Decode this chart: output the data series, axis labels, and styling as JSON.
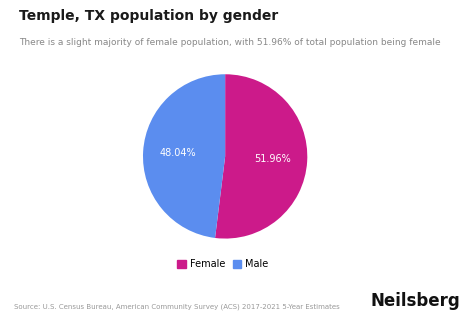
{
  "title": "Temple, TX population by gender",
  "subtitle": "There is a slight majority of female population, with 51.96% of total population being female",
  "slices": [
    51.96,
    48.04
  ],
  "labels": [
    "Female",
    "Male"
  ],
  "colors": [
    "#CC1A8A",
    "#5B8DEF"
  ],
  "autopct_labels": [
    "51.96%",
    "48.04%"
  ],
  "legend_labels": [
    "Female",
    "Male"
  ],
  "source_text": "Source: U.S. Census Bureau, American Community Survey (ACS) 2017-2021 5-Year Estimates",
  "brand": "Neilsberg",
  "background_color": "#ffffff",
  "text_color": "#1a1a1a",
  "label_color": "#ffffff",
  "startangle": 90
}
